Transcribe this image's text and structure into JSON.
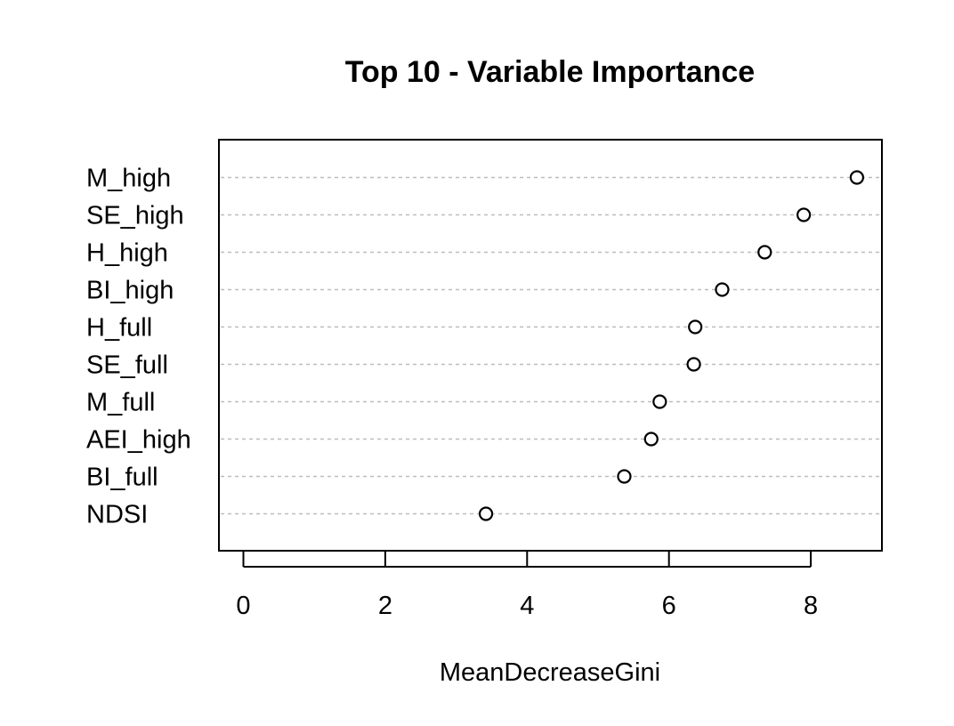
{
  "chart_data": {
    "type": "scatter",
    "title": "Top 10 - Variable Importance",
    "xlabel": "MeanDecreaseGini",
    "ylabel": "",
    "xlim": [
      0,
      9
    ],
    "xticks": [
      0,
      2,
      4,
      6,
      8
    ],
    "grid": "dotted horizontal lines at each variable",
    "categories": [
      "M_high",
      "SE_high",
      "H_high",
      "BI_high",
      "H_full",
      "SE_full",
      "M_full",
      "AEI_high",
      "BI_full",
      "NDSI"
    ],
    "values": [
      8.65,
      7.9,
      7.35,
      6.75,
      6.37,
      6.35,
      5.87,
      5.75,
      5.37,
      3.42
    ]
  }
}
